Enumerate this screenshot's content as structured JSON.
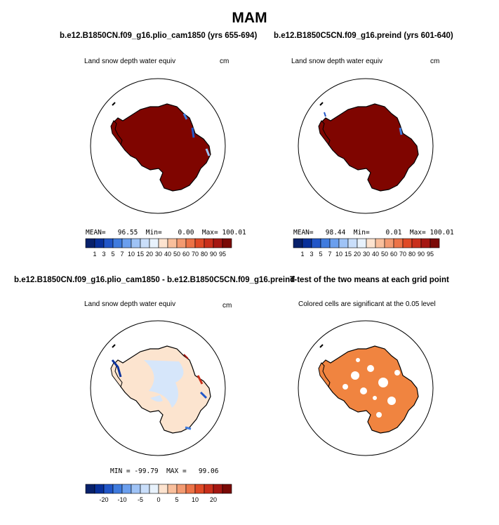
{
  "title": "MAM",
  "panel_titles": {
    "top_left": "b.e12.B1850CN.f09_g16.plio_cam1850 (yrs 655-694)",
    "top_right": "b.e12.B1850C5CN.f09_g16.preind (yrs 601-640)",
    "bottom_left": "b.e12.B1850CN.f09_g16.plio_cam1850 - b.e12.B1850C5CN.f09_g16.preind",
    "bottom_right": "T-test of the two means at each grid point"
  },
  "panels": [
    {
      "variable": "Land snow depth water equiv",
      "units": "cm",
      "stats": "MEAN=   96.55  Min=    0.00  Max= 100.01"
    },
    {
      "variable": "Land snow depth water equiv",
      "units": "cm",
      "stats": "MEAN=   98.44  Min=    0.01  Max= 100.01"
    },
    {
      "variable": "Land snow depth water equiv",
      "units": "cm",
      "stats": "MIN = -99.79  MAX =   99.06"
    },
    {
      "variable": "Colored cells are significant at the 0.05 level"
    }
  ],
  "colorbar_abs": {
    "labels": [
      "1",
      "3",
      "5",
      "7",
      "10",
      "15",
      "20",
      "30",
      "40",
      "50",
      "60",
      "70",
      "80",
      "90",
      "95"
    ],
    "colors": [
      "#08216b",
      "#08309a",
      "#2156c8",
      "#3f7bde",
      "#6b9fee",
      "#9fc3f6",
      "#c9defa",
      "#e8f2fc",
      "#fde3cf",
      "#f9bf9c",
      "#f39a71",
      "#ec7347",
      "#df4a26",
      "#c92f1b",
      "#a51712",
      "#7a0a06"
    ]
  },
  "colorbar_diff": {
    "labels": [
      "-20",
      "-10",
      "-5",
      "0",
      "5",
      "10",
      "20"
    ],
    "colors": [
      "#08216b",
      "#08309a",
      "#2156c8",
      "#3f7bde",
      "#6b9fee",
      "#9fc3f6",
      "#c9defa",
      "#e8f2fc",
      "#fde3cf",
      "#f9bf9c",
      "#f39a71",
      "#ec7347",
      "#df4a26",
      "#c92f1b",
      "#a51712",
      "#7a0a06"
    ]
  },
  "map_colors": {
    "snow_high": "#7f0500",
    "diff_base": "#fce4cf",
    "diff_light_blue": "#d6e6fa",
    "significant": "#f08440",
    "coast": "#000000"
  }
}
